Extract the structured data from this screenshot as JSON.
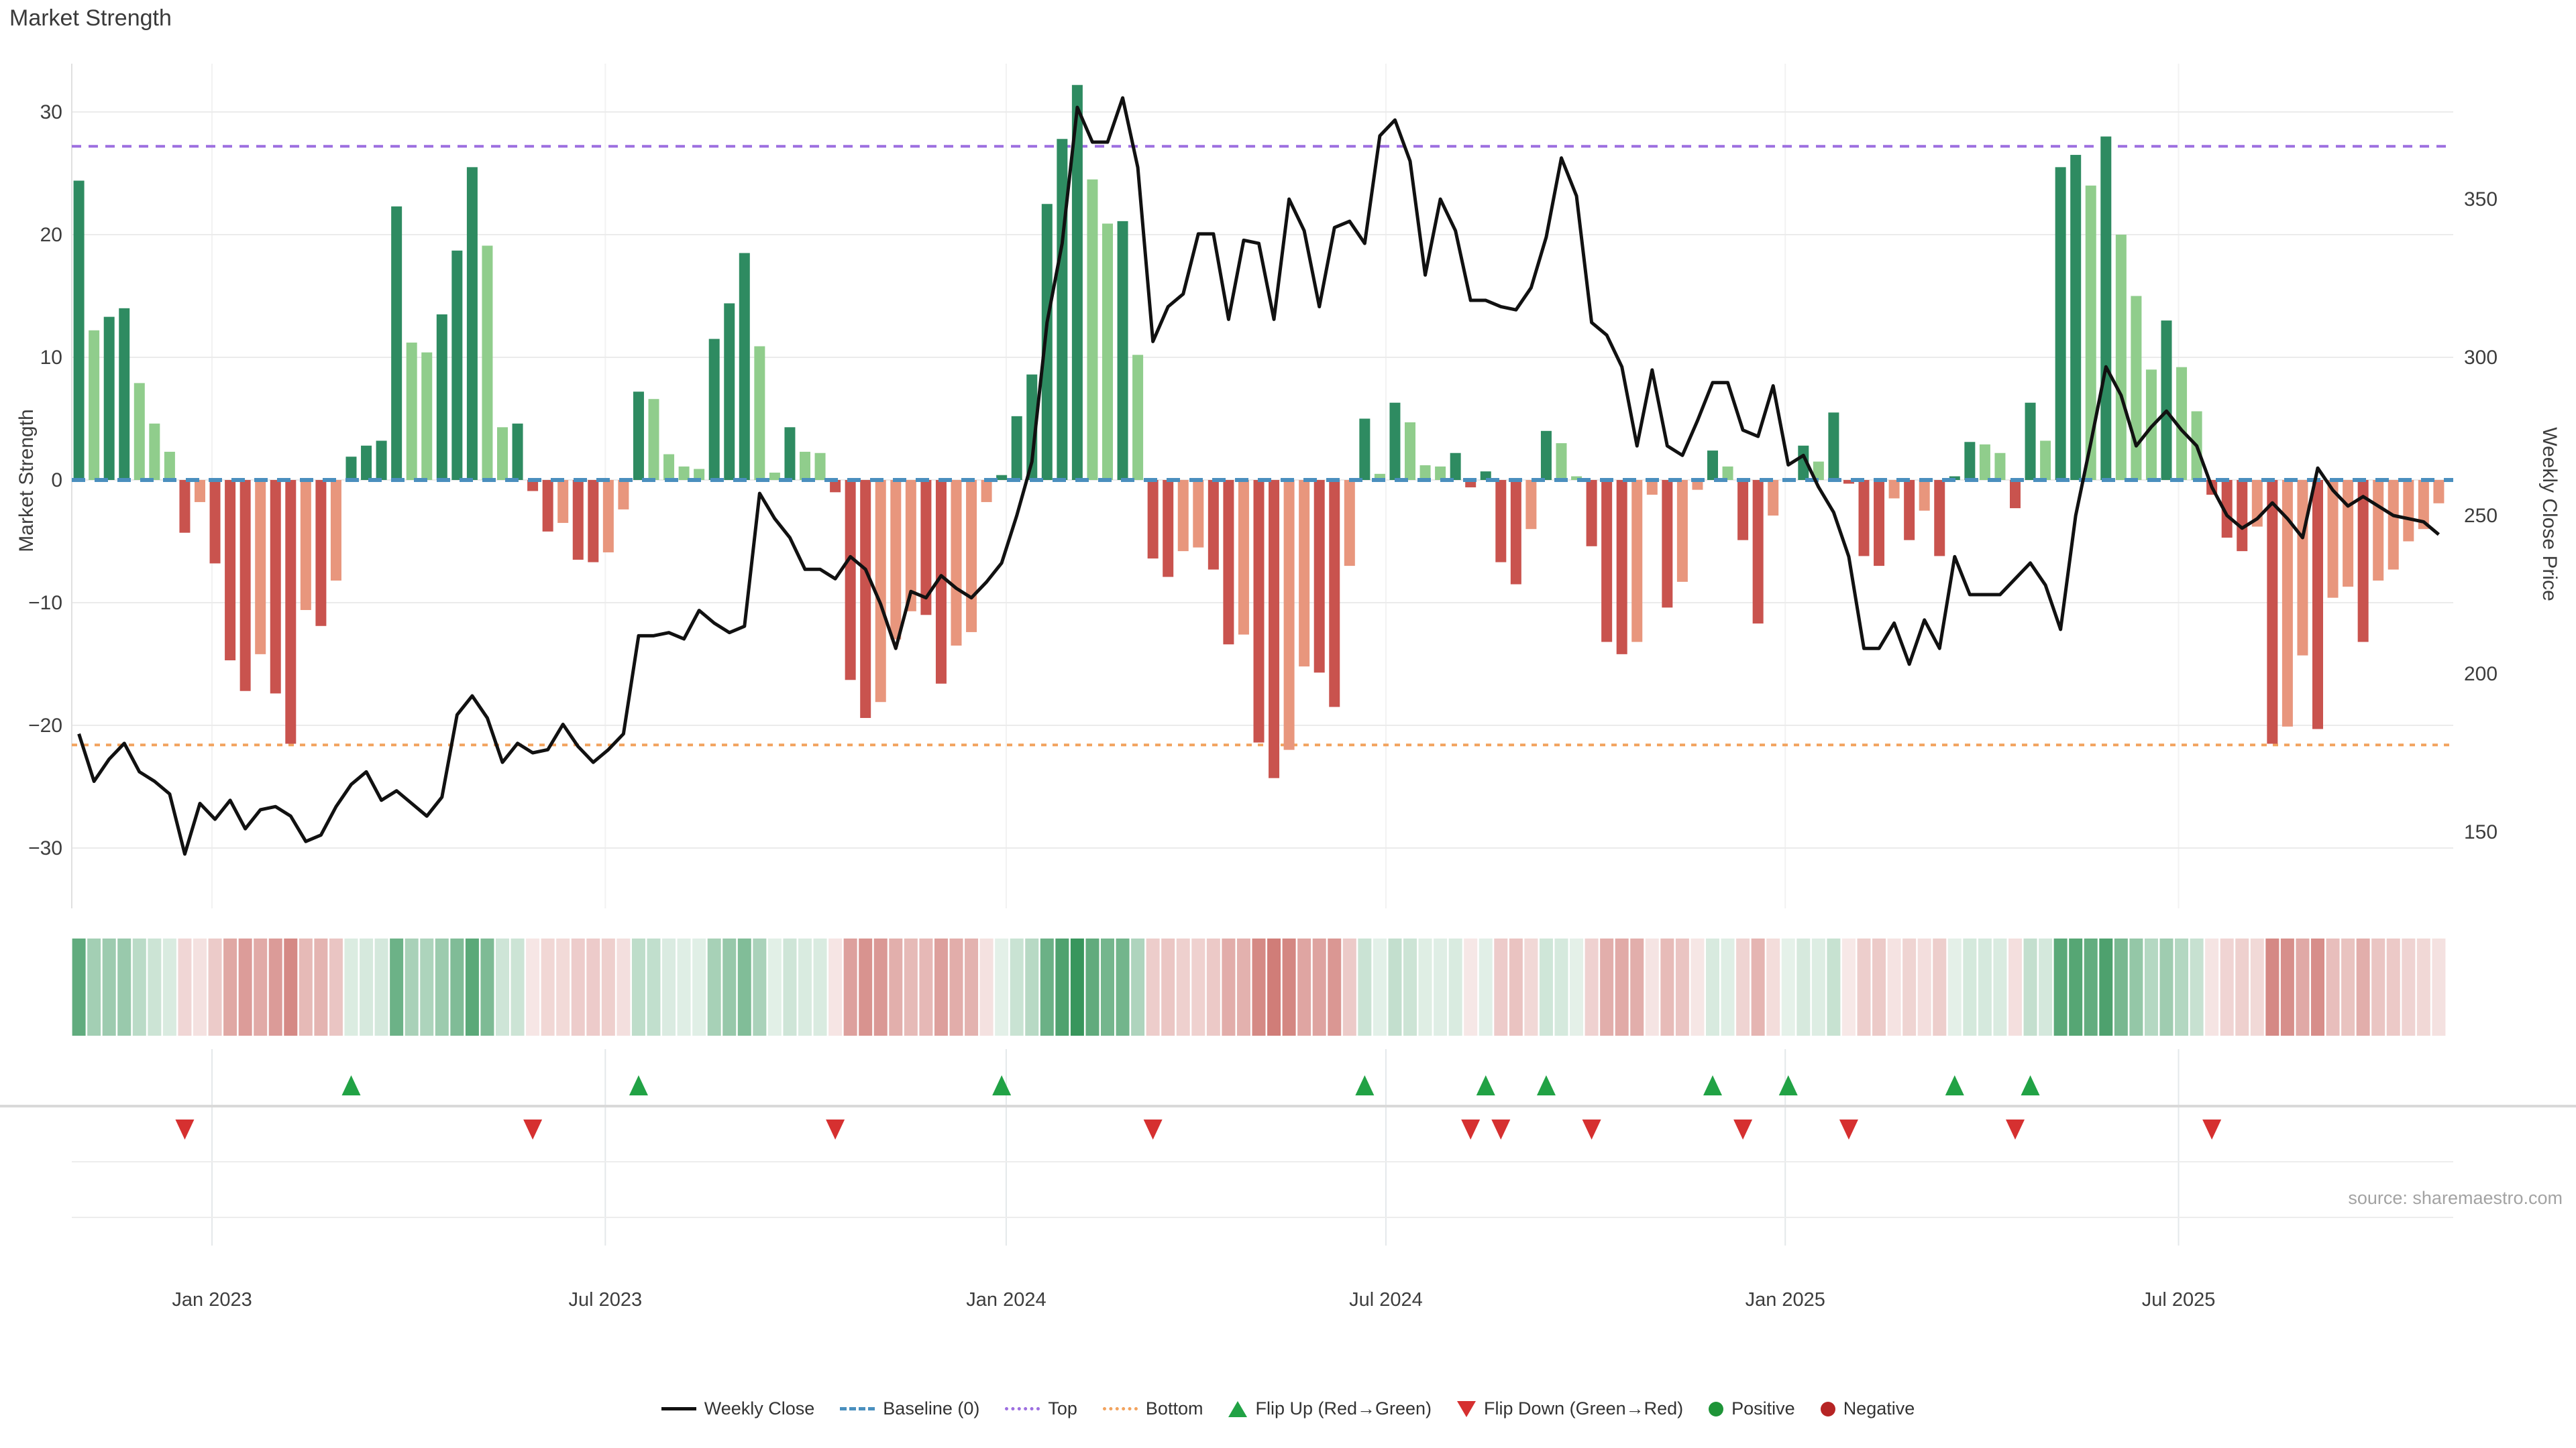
{
  "title": "Market Strength",
  "source_text": "source: sharemaestro.com",
  "colors": {
    "bar_pos_dark": "#2e8b61",
    "bar_pos_light": "#90cd8c",
    "bar_neg_dark": "#c9534e",
    "bar_neg_light": "#e8967d",
    "price_line": "#111111",
    "baseline": "#4a8fbe",
    "top_line": "#9d6fe0",
    "bottom_line": "#f2a35e",
    "grid": "#ebebeb",
    "grid_faint": "#f2f2f2",
    "tick_text": "#3d3d3d",
    "flip_up": "#21a245",
    "flip_down": "#d63030",
    "positive_dot": "#1e9438",
    "negative_dot": "#b62424"
  },
  "axes": {
    "left": {
      "label": "Market Strength",
      "ticks": [
        30,
        20,
        10,
        0,
        -10,
        -20,
        -30
      ]
    },
    "right": {
      "label": "Weekly Close Price",
      "ticks": [
        350,
        300,
        250,
        200,
        150
      ]
    },
    "x": {
      "tick_labels": [
        "Jan 2023",
        "Jul 2023",
        "Jan 2024",
        "Jul 2024",
        "Jan 2025",
        "Jul 2025"
      ]
    }
  },
  "legend": {
    "items": [
      {
        "label": "Weekly Close",
        "marker": "line",
        "color": "#111111"
      },
      {
        "label": "Baseline (0)",
        "marker": "dashed",
        "color": "#4a8fbe"
      },
      {
        "label": "Top",
        "marker": "dotted",
        "color": "#9d6fe0"
      },
      {
        "label": "Bottom",
        "marker": "dotted",
        "color": "#f2a35e"
      },
      {
        "label": "Flip Up (Red→Green)",
        "marker": "triangle-up",
        "color": "#21a245"
      },
      {
        "label": "Flip Down (Green→Red)",
        "marker": "triangle-down",
        "color": "#d63030"
      },
      {
        "label": "Positive",
        "marker": "circle",
        "color": "#1e9438"
      },
      {
        "label": "Negative",
        "marker": "circle",
        "color": "#b62424"
      }
    ]
  },
  "chart_data": {
    "type": "combo",
    "title": "Market Strength",
    "x_unit": "week",
    "n_weeks": 157,
    "x_tick_labels": [
      "Jan 2023",
      "Jul 2023",
      "Jan 2024",
      "Jul 2024",
      "Jan 2025",
      "Jul 2025"
    ],
    "x_tick_week_positions": [
      8.8,
      34.8,
      61.3,
      86.4,
      112.8,
      138.8
    ],
    "left_axis": {
      "label": "Market Strength",
      "ylim": [
        -34.5,
        34
      ],
      "ticks": [
        -30,
        -20,
        -10,
        0,
        10,
        20,
        30
      ]
    },
    "right_axis": {
      "label": "Weekly Close Price",
      "ylim": [
        128,
        391
      ],
      "ticks": [
        150,
        200,
        250,
        300,
        350
      ]
    },
    "baseline": 0,
    "top_line": 27.2,
    "bottom_line": -21.6,
    "grid": true,
    "legend_position": "bottom-center",
    "series": [
      {
        "name": "Market Strength",
        "type": "bar",
        "axis": "left",
        "values": [
          24.4,
          12.2,
          13.3,
          14.0,
          7.9,
          4.6,
          2.3,
          -4.3,
          -1.8,
          -6.8,
          -14.7,
          -17.2,
          -14.2,
          -17.4,
          -21.5,
          -10.6,
          -11.9,
          -8.2,
          1.9,
          2.8,
          3.2,
          22.3,
          11.2,
          10.4,
          13.5,
          18.7,
          25.5,
          19.1,
          4.3,
          4.6,
          -0.9,
          -4.2,
          -3.5,
          -6.5,
          -6.7,
          -5.9,
          -2.4,
          7.2,
          6.6,
          2.1,
          1.1,
          0.9,
          11.5,
          14.4,
          18.5,
          10.9,
          0.6,
          4.3,
          2.3,
          2.2,
          -1.0,
          -16.3,
          -19.4,
          -18.1,
          -13.0,
          -10.7,
          -11.0,
          -16.6,
          -13.5,
          -12.4,
          -1.8,
          0.4,
          5.2,
          8.6,
          22.5,
          27.8,
          32.2,
          24.5,
          20.9,
          21.1,
          10.2,
          -6.4,
          -7.9,
          -5.8,
          -5.5,
          -7.3,
          -13.4,
          -12.6,
          -21.4,
          -24.3,
          -22.0,
          -15.2,
          -15.7,
          -18.5,
          -7.0,
          5.0,
          0.5,
          6.3,
          4.7,
          1.2,
          1.1,
          2.2,
          -0.6,
          0.7,
          -6.7,
          -8.5,
          -4.0,
          4.0,
          3.0,
          0.3,
          -5.4,
          -13.2,
          -14.2,
          -13.2,
          -1.2,
          -10.4,
          -8.3,
          -0.8,
          2.4,
          1.1,
          -4.9,
          -11.7,
          -2.9,
          0.1,
          2.8,
          1.5,
          5.5,
          -0.3,
          -6.2,
          -7.0,
          -1.5,
          -4.9,
          -2.5,
          -6.2,
          0.3,
          3.1,
          2.9,
          2.2,
          -2.3,
          6.3,
          3.2,
          25.5,
          26.5,
          24.0,
          28.0,
          20.0,
          15.0,
          9.0,
          13.0,
          9.2,
          5.6,
          -1.2,
          -4.7,
          -5.8,
          -3.8,
          -21.5,
          -20.1,
          -14.3,
          -20.3,
          -9.6,
          -8.7,
          -13.2,
          -8.2,
          -7.3,
          -5.0,
          -4.0,
          -1.9
        ]
      },
      {
        "name": "Weekly Close",
        "type": "line",
        "axis": "right",
        "values": [
          181,
          166,
          173,
          178,
          169,
          166,
          162,
          143,
          159,
          154,
          160,
          151,
          157,
          158,
          155,
          147,
          149,
          158,
          165,
          169,
          160,
          163,
          159,
          155,
          161,
          187,
          193,
          186,
          172,
          178,
          175,
          176,
          184,
          177,
          172,
          176,
          181,
          212,
          212,
          213,
          211,
          220,
          216,
          213,
          215,
          257,
          249,
          243,
          233,
          233,
          230,
          237,
          233,
          222,
          208,
          226,
          224,
          231,
          227,
          224,
          229,
          235,
          250,
          267,
          311,
          336,
          379,
          368,
          368,
          382,
          360,
          305,
          316,
          320,
          339,
          339,
          312,
          337,
          336,
          312,
          350,
          340,
          316,
          341,
          343,
          336,
          370,
          375,
          362,
          326,
          350,
          340,
          318,
          318,
          316,
          315,
          322,
          338,
          363,
          351,
          311,
          307,
          297,
          272,
          296,
          272,
          269,
          280,
          292,
          292,
          277,
          275,
          291,
          266,
          269,
          259,
          251,
          237,
          208,
          208,
          216,
          203,
          217,
          208,
          237,
          225,
          225,
          225,
          230,
          235,
          228,
          214,
          250,
          273,
          297,
          288,
          272,
          278,
          283,
          277,
          272,
          259,
          250,
          246,
          249,
          254,
          249,
          243,
          265,
          258,
          253,
          256,
          253,
          250,
          249,
          248,
          244
        ]
      }
    ],
    "heatmap_strip": {
      "based_on": "Market Strength",
      "position": "below-main-plot"
    },
    "flip_up_weeks": [
      18,
      37,
      61,
      85,
      93,
      97,
      108,
      113,
      124,
      129
    ],
    "flip_down_weeks": [
      7,
      30,
      50,
      71,
      92,
      94,
      100,
      110,
      117,
      128,
      141
    ]
  }
}
